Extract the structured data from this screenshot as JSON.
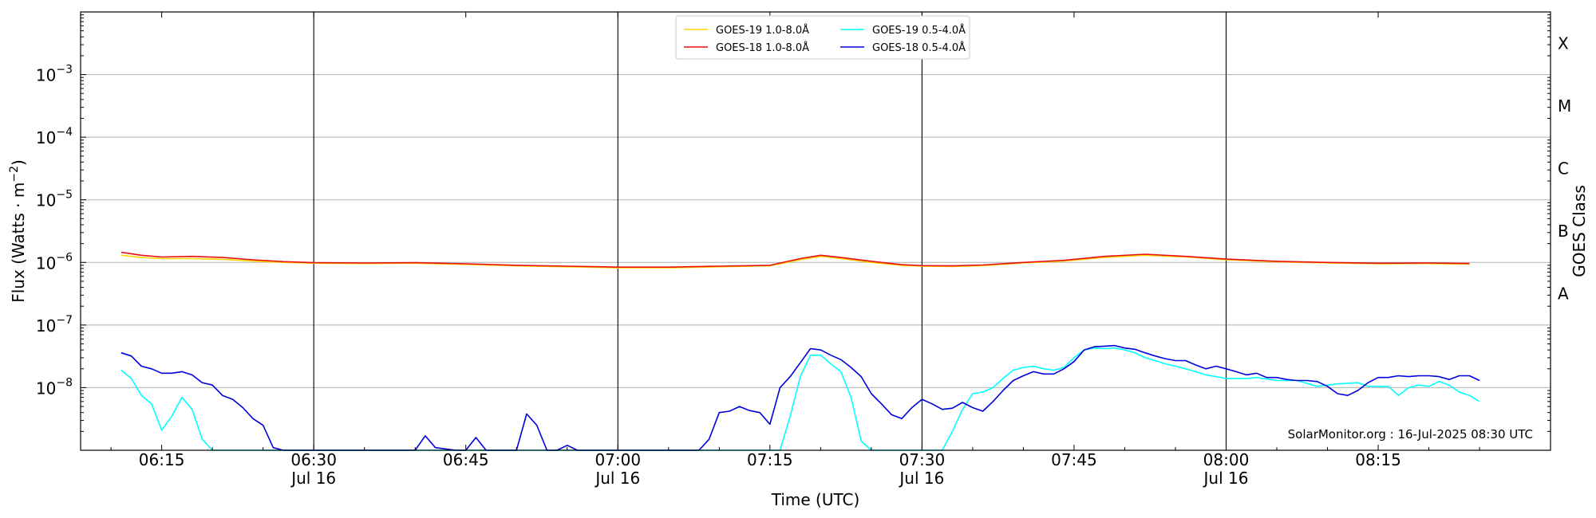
{
  "chart_data": {
    "type": "line",
    "title": "",
    "xlabel": "Time (UTC)",
    "ylabel": "Flux (Watts · m",
    "ylabel_sup": "−2",
    "ylabel_close": ")",
    "right_label": "GOES Class",
    "y_scale": "log",
    "ylim": [
      1e-09,
      0.01
    ],
    "xlim": [
      "06:07",
      "08:32"
    ],
    "grid": "horizontal at decades",
    "legend_position": "top-center",
    "credit": "SolarMonitor.org : 16-Jul-2025 08:30 UTC",
    "y_ticks": [
      {
        "value": 0.001,
        "base": "10",
        "exp": "−3"
      },
      {
        "value": 0.0001,
        "base": "10",
        "exp": "−4"
      },
      {
        "value": 1e-05,
        "base": "10",
        "exp": "−5"
      },
      {
        "value": 1e-06,
        "base": "10",
        "exp": "−6"
      },
      {
        "value": 1e-07,
        "base": "10",
        "exp": "−7"
      },
      {
        "value": 1e-08,
        "base": "10",
        "exp": "−8"
      }
    ],
    "x_ticks": [
      {
        "time": "06:15",
        "label": "06:15",
        "date": "",
        "vline": false
      },
      {
        "time": "06:30",
        "label": "06:30",
        "date": "Jul 16",
        "vline": true
      },
      {
        "time": "06:45",
        "label": "06:45",
        "date": "",
        "vline": false
      },
      {
        "time": "07:00",
        "label": "07:00",
        "date": "Jul 16",
        "vline": true
      },
      {
        "time": "07:15",
        "label": "07:15",
        "date": "",
        "vline": false
      },
      {
        "time": "07:30",
        "label": "07:30",
        "date": "Jul 16",
        "vline": true
      },
      {
        "time": "07:45",
        "label": "07:45",
        "date": "",
        "vline": false
      },
      {
        "time": "08:00",
        "label": "08:00",
        "date": "Jul 16",
        "vline": true
      },
      {
        "time": "08:15",
        "label": "08:15",
        "date": "",
        "vline": false
      }
    ],
    "goes_classes": [
      {
        "label": "X",
        "value": 0.001
      },
      {
        "label": "M",
        "value": 0.0001
      },
      {
        "label": "C",
        "value": 1e-05
      },
      {
        "label": "B",
        "value": 1e-06
      },
      {
        "label": "A",
        "value": 1e-07
      }
    ],
    "series": [
      {
        "name": "GOES-19 1.0-8.0Å",
        "color": "#ffd700",
        "points": [
          [
            "06:11",
            1.3e-06
          ],
          [
            "06:13",
            1.2e-06
          ],
          [
            "06:15",
            1.15e-06
          ],
          [
            "06:18",
            1.15e-06
          ],
          [
            "06:21",
            1.12e-06
          ],
          [
            "06:24",
            1.05e-06
          ],
          [
            "06:27",
            1e-06
          ],
          [
            "06:30",
            9.7e-07
          ],
          [
            "06:35",
            9.6e-07
          ],
          [
            "06:40",
            9.7e-07
          ],
          [
            "06:45",
            9.3e-07
          ],
          [
            "06:50",
            8.8e-07
          ],
          [
            "06:55",
            8.5e-07
          ],
          [
            "07:00",
            8.2e-07
          ],
          [
            "07:05",
            8.2e-07
          ],
          [
            "07:10",
            8.5e-07
          ],
          [
            "07:15",
            8.8e-07
          ],
          [
            "07:18",
            1.1e-06
          ],
          [
            "07:20",
            1.25e-06
          ],
          [
            "07:22",
            1.15e-06
          ],
          [
            "07:25",
            1e-06
          ],
          [
            "07:28",
            9e-07
          ],
          [
            "07:30",
            8.7e-07
          ],
          [
            "07:33",
            8.6e-07
          ],
          [
            "07:36",
            8.9e-07
          ],
          [
            "07:40",
            9.8e-07
          ],
          [
            "07:44",
            1.05e-06
          ],
          [
            "07:48",
            1.2e-06
          ],
          [
            "07:52",
            1.3e-06
          ],
          [
            "07:56",
            1.22e-06
          ],
          [
            "08:00",
            1.1e-06
          ],
          [
            "08:05",
            1.02e-06
          ],
          [
            "08:10",
            9.8e-07
          ],
          [
            "08:15",
            9.5e-07
          ],
          [
            "08:20",
            9.6e-07
          ],
          [
            "08:24",
            9.4e-07
          ]
        ]
      },
      {
        "name": "GOES-18 1.0-8.0Å",
        "color": "#e81010",
        "points": [
          [
            "06:11",
            1.45e-06
          ],
          [
            "06:13",
            1.3e-06
          ],
          [
            "06:15",
            1.22e-06
          ],
          [
            "06:18",
            1.25e-06
          ],
          [
            "06:21",
            1.2e-06
          ],
          [
            "06:24",
            1.1e-06
          ],
          [
            "06:27",
            1.03e-06
          ],
          [
            "06:30",
            9.9e-07
          ],
          [
            "06:35",
            9.8e-07
          ],
          [
            "06:40",
            9.9e-07
          ],
          [
            "06:45",
            9.5e-07
          ],
          [
            "06:50",
            9e-07
          ],
          [
            "06:55",
            8.7e-07
          ],
          [
            "07:00",
            8.4e-07
          ],
          [
            "07:05",
            8.4e-07
          ],
          [
            "07:10",
            8.7e-07
          ],
          [
            "07:15",
            9e-07
          ],
          [
            "07:18",
            1.15e-06
          ],
          [
            "07:20",
            1.3e-06
          ],
          [
            "07:22",
            1.2e-06
          ],
          [
            "07:25",
            1.04e-06
          ],
          [
            "07:28",
            9.2e-07
          ],
          [
            "07:30",
            8.9e-07
          ],
          [
            "07:33",
            8.8e-07
          ],
          [
            "07:36",
            9.1e-07
          ],
          [
            "07:40",
            1e-06
          ],
          [
            "07:44",
            1.08e-06
          ],
          [
            "07:48",
            1.25e-06
          ],
          [
            "07:52",
            1.35e-06
          ],
          [
            "07:56",
            1.25e-06
          ],
          [
            "08:00",
            1.13e-06
          ],
          [
            "08:05",
            1.04e-06
          ],
          [
            "08:10",
            1e-06
          ],
          [
            "08:15",
            9.7e-07
          ],
          [
            "08:20",
            9.8e-07
          ],
          [
            "08:24",
            9.6e-07
          ]
        ]
      },
      {
        "name": "GOES-19 0.5-4.0Å",
        "color": "#00ffff",
        "points": [
          [
            "06:11",
            1.9e-08
          ],
          [
            "06:12",
            1.4e-08
          ],
          [
            "06:13",
            7.5e-09
          ],
          [
            "06:14",
            5.5e-09
          ],
          [
            "06:15",
            2.1e-09
          ],
          [
            "06:16",
            3.5e-09
          ],
          [
            "06:17",
            7e-09
          ],
          [
            "06:18",
            4.5e-09
          ],
          [
            "06:19",
            1.5e-09
          ],
          [
            "06:20",
            1e-09
          ],
          [
            "07:16",
            1e-09
          ],
          [
            "07:17",
            3.5e-09
          ],
          [
            "07:18",
            1.5e-08
          ],
          [
            "07:19",
            3.3e-08
          ],
          [
            "07:20",
            3.3e-08
          ],
          [
            "07:21",
            2.4e-08
          ],
          [
            "07:22",
            1.8e-08
          ],
          [
            "07:23",
            7e-09
          ],
          [
            "07:24",
            1.4e-09
          ],
          [
            "07:25",
            1e-09
          ],
          [
            "07:32",
            1e-09
          ],
          [
            "07:33",
            2e-09
          ],
          [
            "07:34",
            4.5e-09
          ],
          [
            "07:35",
            8e-09
          ],
          [
            "07:36",
            8.5e-09
          ],
          [
            "07:37",
            1e-08
          ],
          [
            "07:38",
            1.4e-08
          ],
          [
            "07:39",
            1.9e-08
          ],
          [
            "07:40",
            2.1e-08
          ],
          [
            "07:41",
            2.2e-08
          ],
          [
            "07:42",
            2e-08
          ],
          [
            "07:43",
            1.9e-08
          ],
          [
            "07:44",
            2.1e-08
          ],
          [
            "07:45",
            3e-08
          ],
          [
            "07:46",
            4e-08
          ],
          [
            "07:47",
            4.3e-08
          ],
          [
            "07:48",
            4.2e-08
          ],
          [
            "07:49",
            4.3e-08
          ],
          [
            "07:50",
            4e-08
          ],
          [
            "07:51",
            3.6e-08
          ],
          [
            "07:52",
            3e-08
          ],
          [
            "07:53",
            2.7e-08
          ],
          [
            "07:54",
            2.4e-08
          ],
          [
            "07:55",
            2.2e-08
          ],
          [
            "07:56",
            2e-08
          ],
          [
            "07:57",
            1.8e-08
          ],
          [
            "07:58",
            1.6e-08
          ],
          [
            "07:59",
            1.5e-08
          ],
          [
            "08:00",
            1.4e-08
          ],
          [
            "08:02",
            1.4e-08
          ],
          [
            "08:03",
            1.45e-08
          ],
          [
            "08:05",
            1.3e-08
          ],
          [
            "08:07",
            1.3e-08
          ],
          [
            "08:09",
            1.05e-08
          ],
          [
            "08:11",
            1.15e-08
          ],
          [
            "08:13",
            1.2e-08
          ],
          [
            "08:14",
            1.05e-08
          ],
          [
            "08:16",
            1.05e-08
          ],
          [
            "08:17",
            7.5e-09
          ],
          [
            "08:18",
            1e-08
          ],
          [
            "08:19",
            1.1e-08
          ],
          [
            "08:20",
            1.05e-08
          ],
          [
            "08:21",
            1.25e-08
          ],
          [
            "08:22",
            1.1e-08
          ],
          [
            "08:23",
            8.5e-09
          ],
          [
            "08:24",
            7.5e-09
          ],
          [
            "08:25",
            6e-09
          ]
        ]
      },
      {
        "name": "GOES-18 0.5-4.0Å",
        "color": "#0000dd",
        "points": [
          [
            "06:11",
            3.6e-08
          ],
          [
            "06:12",
            3.2e-08
          ],
          [
            "06:13",
            2.2e-08
          ],
          [
            "06:14",
            2e-08
          ],
          [
            "06:15",
            1.7e-08
          ],
          [
            "06:16",
            1.7e-08
          ],
          [
            "06:17",
            1.8e-08
          ],
          [
            "06:18",
            1.6e-08
          ],
          [
            "06:19",
            1.2e-08
          ],
          [
            "06:20",
            1.1e-08
          ],
          [
            "06:21",
            7.5e-09
          ],
          [
            "06:22",
            6.5e-09
          ],
          [
            "06:23",
            4.8e-09
          ],
          [
            "06:24",
            3.2e-09
          ],
          [
            "06:25",
            2.5e-09
          ],
          [
            "06:26",
            1.1e-09
          ],
          [
            "06:27",
            1e-09
          ],
          [
            "06:40",
            1e-09
          ],
          [
            "06:41",
            1.7e-09
          ],
          [
            "06:42",
            1.1e-09
          ],
          [
            "06:44",
            1e-09
          ],
          [
            "06:45",
            1e-09
          ],
          [
            "06:46",
            1.6e-09
          ],
          [
            "06:47",
            1e-09
          ],
          [
            "06:50",
            1e-09
          ],
          [
            "06:51",
            3.8e-09
          ],
          [
            "06:52",
            2.5e-09
          ],
          [
            "06:53",
            1e-09
          ],
          [
            "06:54",
            1e-09
          ],
          [
            "06:55",
            1.2e-09
          ],
          [
            "06:56",
            1e-09
          ],
          [
            "07:08",
            1e-09
          ],
          [
            "07:09",
            1.5e-09
          ],
          [
            "07:10",
            4e-09
          ],
          [
            "07:11",
            4.2e-09
          ],
          [
            "07:12",
            5e-09
          ],
          [
            "07:13",
            4.3e-09
          ],
          [
            "07:14",
            4e-09
          ],
          [
            "07:15",
            2.6e-09
          ],
          [
            "07:16",
            1e-08
          ],
          [
            "07:17",
            1.5e-08
          ],
          [
            "07:18",
            2.5e-08
          ],
          [
            "07:19",
            4.2e-08
          ],
          [
            "07:20",
            4e-08
          ],
          [
            "07:21",
            3.3e-08
          ],
          [
            "07:22",
            2.8e-08
          ],
          [
            "07:23",
            2.1e-08
          ],
          [
            "07:24",
            1.5e-08
          ],
          [
            "07:25",
            8e-09
          ],
          [
            "07:26",
            5.5e-09
          ],
          [
            "07:27",
            3.7e-09
          ],
          [
            "07:28",
            3.2e-09
          ],
          [
            "07:29",
            4.8e-09
          ],
          [
            "07:30",
            6.5e-09
          ],
          [
            "07:31",
            5.5e-09
          ],
          [
            "07:32",
            4.5e-09
          ],
          [
            "07:33",
            4.7e-09
          ],
          [
            "07:34",
            5.8e-09
          ],
          [
            "07:35",
            4.8e-09
          ],
          [
            "07:36",
            4.2e-09
          ],
          [
            "07:37",
            6e-09
          ],
          [
            "07:38",
            9e-09
          ],
          [
            "07:39",
            1.3e-08
          ],
          [
            "07:40",
            1.55e-08
          ],
          [
            "07:41",
            1.8e-08
          ],
          [
            "07:42",
            1.65e-08
          ],
          [
            "07:43",
            1.65e-08
          ],
          [
            "07:44",
            2e-08
          ],
          [
            "07:45",
            2.6e-08
          ],
          [
            "07:46",
            4e-08
          ],
          [
            "07:47",
            4.5e-08
          ],
          [
            "07:48",
            4.6e-08
          ],
          [
            "07:49",
            4.7e-08
          ],
          [
            "07:50",
            4.3e-08
          ],
          [
            "07:51",
            4.1e-08
          ],
          [
            "07:52",
            3.6e-08
          ],
          [
            "07:53",
            3.2e-08
          ],
          [
            "07:54",
            2.9e-08
          ],
          [
            "07:55",
            2.7e-08
          ],
          [
            "07:56",
            2.7e-08
          ],
          [
            "07:57",
            2.3e-08
          ],
          [
            "07:58",
            2e-08
          ],
          [
            "07:59",
            2.2e-08
          ],
          [
            "08:00",
            2e-08
          ],
          [
            "08:01",
            1.8e-08
          ],
          [
            "08:02",
            1.6e-08
          ],
          [
            "08:03",
            1.7e-08
          ],
          [
            "08:04",
            1.45e-08
          ],
          [
            "08:05",
            1.45e-08
          ],
          [
            "08:06",
            1.35e-08
          ],
          [
            "08:07",
            1.3e-08
          ],
          [
            "08:08",
            1.3e-08
          ],
          [
            "08:09",
            1.25e-08
          ],
          [
            "08:10",
            1.05e-08
          ],
          [
            "08:11",
            8e-09
          ],
          [
            "08:12",
            7.5e-09
          ],
          [
            "08:13",
            9e-09
          ],
          [
            "08:14",
            1.2e-08
          ],
          [
            "08:15",
            1.45e-08
          ],
          [
            "08:16",
            1.45e-08
          ],
          [
            "08:17",
            1.55e-08
          ],
          [
            "08:18",
            1.5e-08
          ],
          [
            "08:19",
            1.55e-08
          ],
          [
            "08:20",
            1.55e-08
          ],
          [
            "08:21",
            1.5e-08
          ],
          [
            "08:22",
            1.35e-08
          ],
          [
            "08:23",
            1.55e-08
          ],
          [
            "08:24",
            1.55e-08
          ],
          [
            "08:25",
            1.3e-08
          ]
        ]
      }
    ],
    "legend_layout": [
      {
        "series": 0,
        "col": 0,
        "row": 0
      },
      {
        "series": 1,
        "col": 0,
        "row": 1
      },
      {
        "series": 2,
        "col": 1,
        "row": 0
      },
      {
        "series": 3,
        "col": 1,
        "row": 1
      }
    ]
  }
}
